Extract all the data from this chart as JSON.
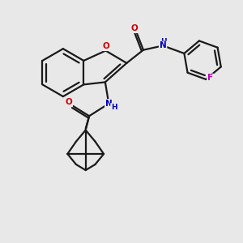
{
  "bg_color": "#e8e8e8",
  "bond_color": "#1a1a1a",
  "O_color": "#cc0000",
  "N_color": "#0000bb",
  "F_color": "#bb00bb",
  "lw": 1.6,
  "dbo": 0.055,
  "xlim": [
    0,
    10
  ],
  "ylim": [
    0,
    10
  ]
}
